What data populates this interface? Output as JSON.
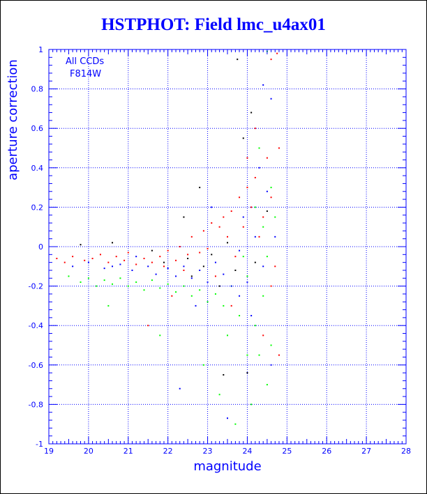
{
  "chart_data": {
    "type": "scatter",
    "title": "HSTPHOT: Field lmc_u4ax01",
    "xlabel": "magnitude",
    "ylabel": "aperture correction",
    "xlim": [
      19,
      28
    ],
    "ylim": [
      -1,
      1
    ],
    "xticks": [
      "19",
      "20",
      "21",
      "22",
      "23",
      "24",
      "25",
      "26",
      "27",
      "28"
    ],
    "yticks": [
      "-1",
      "-0.8",
      "-0.6",
      "-0.4",
      "-0.2",
      "0",
      "0.2",
      "0.4",
      "0.6",
      "0.8",
      "1"
    ],
    "grid": true,
    "annotations": [
      "All CCDs",
      "F814W"
    ],
    "colors": {
      "axis": "#0000ff",
      "title": "#0000ff",
      "grid": "#0000ff"
    },
    "series": [
      {
        "color": "#ff0000",
        "points": [
          [
            19.2,
            -0.06
          ],
          [
            19.4,
            -0.08
          ],
          [
            19.6,
            -0.05
          ],
          [
            19.9,
            -0.07
          ],
          [
            20.1,
            -0.06
          ],
          [
            20.3,
            -0.04
          ],
          [
            20.5,
            -0.08
          ],
          [
            20.7,
            -0.05
          ],
          [
            20.9,
            -0.07
          ],
          [
            21.0,
            -0.03
          ],
          [
            21.2,
            -0.09
          ],
          [
            21.4,
            -0.06
          ],
          [
            21.6,
            -0.08
          ],
          [
            21.8,
            -0.05
          ],
          [
            21.9,
            -0.1
          ],
          [
            22.0,
            -0.02
          ],
          [
            22.2,
            -0.07
          ],
          [
            22.3,
            0.0
          ],
          [
            22.5,
            -0.04
          ],
          [
            22.6,
            0.05
          ],
          [
            22.8,
            -0.03
          ],
          [
            22.9,
            0.08
          ],
          [
            23.0,
            -0.01
          ],
          [
            23.1,
            0.12
          ],
          [
            23.3,
            0.1
          ],
          [
            23.4,
            0.15
          ],
          [
            23.5,
            0.05
          ],
          [
            23.6,
            0.18
          ],
          [
            23.7,
            -0.05
          ],
          [
            23.8,
            0.25
          ],
          [
            23.9,
            0.1
          ],
          [
            24.0,
            0.3
          ],
          [
            24.1,
            0.2
          ],
          [
            24.2,
            0.35
          ],
          [
            24.3,
            0.05
          ],
          [
            24.4,
            0.15
          ],
          [
            24.5,
            0.45
          ],
          [
            24.6,
            0.25
          ],
          [
            24.7,
            -0.1
          ],
          [
            24.8,
            0.5
          ],
          [
            24.6,
            0.95
          ],
          [
            24.75,
            0.98
          ],
          [
            24.2,
            0.6
          ],
          [
            24.0,
            0.45
          ],
          [
            23.2,
            -0.15
          ],
          [
            22.4,
            -0.12
          ],
          [
            21.5,
            -0.4
          ],
          [
            22.1,
            -0.25
          ],
          [
            23.6,
            -0.3
          ],
          [
            24.4,
            -0.45
          ],
          [
            24.6,
            -0.2
          ],
          [
            24.8,
            -0.55
          ]
        ]
      },
      {
        "color": "#00ff00",
        "points": [
          [
            19.5,
            -0.15
          ],
          [
            19.8,
            -0.18
          ],
          [
            20.0,
            -0.16
          ],
          [
            20.2,
            -0.2
          ],
          [
            20.4,
            -0.17
          ],
          [
            20.6,
            -0.19
          ],
          [
            20.8,
            -0.16
          ],
          [
            21.0,
            -0.2
          ],
          [
            21.2,
            -0.18
          ],
          [
            21.4,
            -0.22
          ],
          [
            21.6,
            -0.17
          ],
          [
            21.8,
            -0.21
          ],
          [
            22.0,
            -0.19
          ],
          [
            22.2,
            -0.23
          ],
          [
            22.4,
            -0.2
          ],
          [
            22.6,
            -0.25
          ],
          [
            22.8,
            -0.22
          ],
          [
            23.0,
            -0.28
          ],
          [
            23.2,
            -0.24
          ],
          [
            23.4,
            -0.3
          ],
          [
            23.6,
            -0.2
          ],
          [
            23.8,
            -0.35
          ],
          [
            24.0,
            -0.15
          ],
          [
            24.2,
            -0.4
          ],
          [
            24.4,
            -0.25
          ],
          [
            24.6,
            -0.5
          ],
          [
            24.3,
            -0.55
          ],
          [
            24.5,
            -0.7
          ],
          [
            24.1,
            -0.8
          ],
          [
            23.5,
            -0.45
          ],
          [
            22.9,
            -0.6
          ],
          [
            21.8,
            -0.45
          ],
          [
            20.5,
            -0.3
          ],
          [
            24.4,
            0.1
          ],
          [
            24.6,
            0.3
          ],
          [
            24.2,
            0.2
          ],
          [
            23.9,
            -0.05
          ],
          [
            24.5,
            -0.05
          ],
          [
            24.7,
            0.15
          ],
          [
            24.3,
            0.5
          ],
          [
            24.5,
            0.99
          ],
          [
            24.0,
            -0.55
          ],
          [
            23.7,
            -0.9
          ],
          [
            23.3,
            -0.75
          ]
        ]
      },
      {
        "color": "#0000ff",
        "points": [
          [
            19.6,
            -0.1
          ],
          [
            20.0,
            -0.08
          ],
          [
            20.4,
            -0.11
          ],
          [
            20.8,
            -0.09
          ],
          [
            21.1,
            -0.12
          ],
          [
            21.5,
            -0.1
          ],
          [
            21.7,
            -0.14
          ],
          [
            22.0,
            -0.11
          ],
          [
            22.2,
            -0.15
          ],
          [
            22.4,
            -0.1
          ],
          [
            22.6,
            -0.16
          ],
          [
            22.8,
            -0.12
          ],
          [
            23.0,
            -0.18
          ],
          [
            23.2,
            -0.08
          ],
          [
            23.4,
            -0.14
          ],
          [
            23.6,
            -0.2
          ],
          [
            23.8,
            -0.02
          ],
          [
            24.0,
            -0.18
          ],
          [
            24.2,
            0.05
          ],
          [
            24.4,
            -0.1
          ],
          [
            24.5,
            0.28
          ],
          [
            24.3,
            0.4
          ],
          [
            24.6,
            -0.6
          ],
          [
            24.1,
            -0.35
          ],
          [
            23.5,
            -0.87
          ],
          [
            24.4,
            0.82
          ],
          [
            24.6,
            0.75
          ],
          [
            22.3,
            -0.72
          ],
          [
            21.2,
            -0.05
          ],
          [
            23.1,
            0.2
          ],
          [
            23.9,
            0.15
          ],
          [
            24.7,
            0.05
          ],
          [
            20.6,
            -0.1
          ],
          [
            22.7,
            -0.3
          ],
          [
            23.8,
            -0.25
          ]
        ]
      },
      {
        "color": "#000000",
        "points": [
          [
            19.8,
            0.01
          ],
          [
            20.6,
            0.02
          ],
          [
            21.6,
            -0.02
          ],
          [
            22.5,
            -0.06
          ],
          [
            22.9,
            -0.1
          ],
          [
            23.1,
            -0.04
          ],
          [
            23.3,
            -0.2
          ],
          [
            23.5,
            0.02
          ],
          [
            23.7,
            -0.12
          ],
          [
            23.75,
            0.95
          ],
          [
            23.9,
            0.55
          ],
          [
            24.1,
            0.68
          ],
          [
            24.0,
            -0.64
          ],
          [
            23.4,
            -0.65
          ],
          [
            22.8,
            0.3
          ],
          [
            22.4,
            0.15
          ],
          [
            24.2,
            -0.08
          ],
          [
            24.5,
            0.18
          ],
          [
            21.9,
            -0.08
          ],
          [
            22.6,
            -0.15
          ]
        ]
      }
    ]
  }
}
